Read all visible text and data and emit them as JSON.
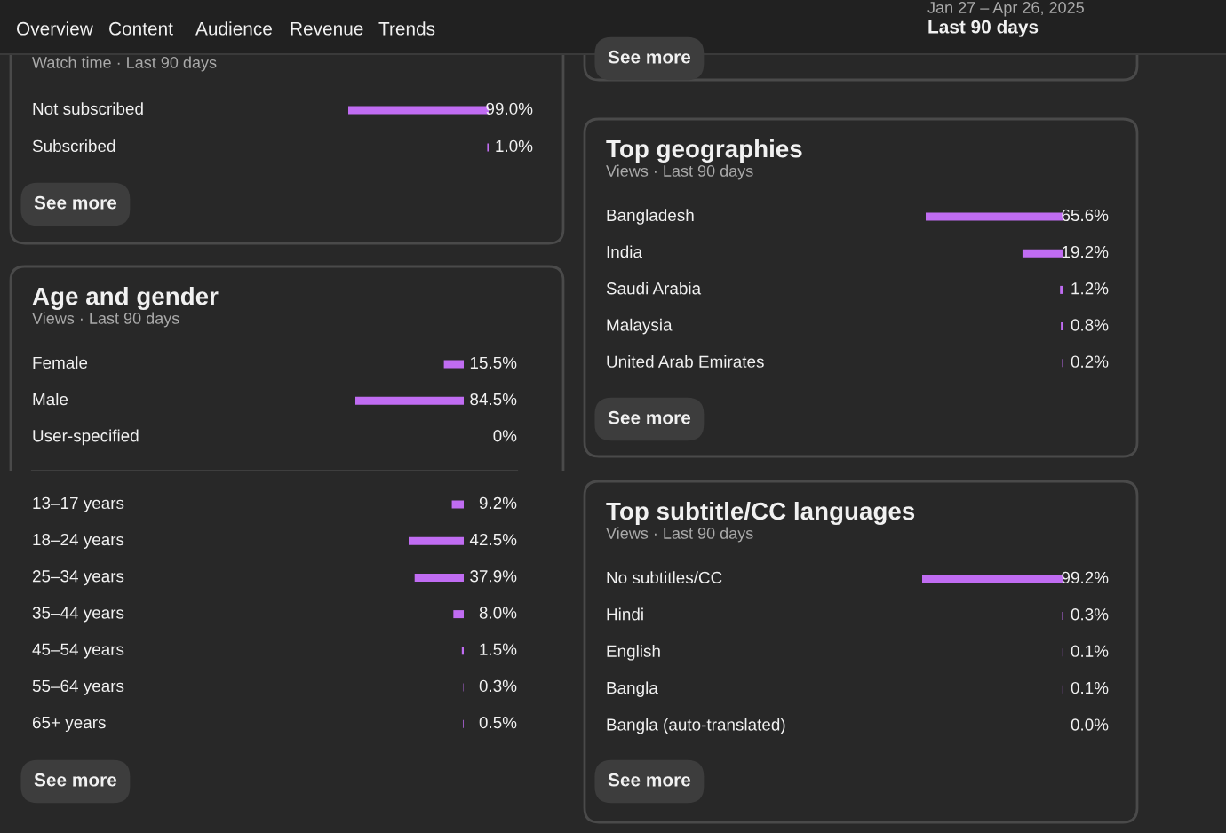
{
  "chart_data": [
    {
      "type": "other",
      "annotations": [
        "Overview",
        "Content",
        "Audience",
        "Revenue",
        "Trends",
        "Jan 27 – Apr 26, 2025",
        "Last 90 days"
      ]
    },
    {
      "type": "bar",
      "orientation": "horizontal",
      "subtitle": "Watch time · Last 90 days",
      "categories": [
        "Not subscribed",
        "Subscribed"
      ],
      "values": [
        99.0,
        1.0
      ],
      "value_labels": [
        "99.0%",
        "1.0%"
      ],
      "color": "#c06cf2",
      "annotations": [
        "See more"
      ]
    },
    {
      "type": "other",
      "annotations": [
        "See more"
      ]
    },
    {
      "type": "bar",
      "orientation": "horizontal",
      "title": "Age and gender",
      "subtitle": "Views · Last 90 days",
      "categories": [
        "Female",
        "Male",
        "User-specified"
      ],
      "values": [
        15.5,
        84.5,
        0
      ],
      "value_labels": [
        "15.5%",
        "84.5%",
        "0%"
      ],
      "color": "#c06cf2"
    },
    {
      "type": "bar",
      "orientation": "horizontal",
      "categories": [
        "13–17 years",
        "18–24 years",
        "25–34 years",
        "35–44 years",
        "45–54 years",
        "55–64 years",
        "65+ years"
      ],
      "values": [
        9.2,
        42.5,
        37.9,
        8.0,
        1.5,
        0.3,
        0.5
      ],
      "value_labels": [
        "9.2%",
        "42.5%",
        "37.9%",
        "8.0%",
        "1.5%",
        "0.3%",
        "0.5%"
      ],
      "color": "#c06cf2",
      "annotations": [
        "See more"
      ]
    },
    {
      "type": "bar",
      "orientation": "horizontal",
      "title": "Top geographies",
      "subtitle": "Views · Last 90 days",
      "categories": [
        "Bangladesh",
        "India",
        "Saudi Arabia",
        "Malaysia",
        "United Arab Emirates"
      ],
      "values": [
        65.6,
        19.2,
        1.2,
        0.8,
        0.2
      ],
      "value_labels": [
        "65.6%",
        "19.2%",
        "1.2%",
        "0.8%",
        "0.2%"
      ],
      "color": "#c06cf2",
      "annotations": [
        "See more"
      ]
    },
    {
      "type": "bar",
      "orientation": "horizontal",
      "title": "Top subtitle/CC languages",
      "subtitle": "Views · Last 90 days",
      "categories": [
        "No subtitles/CC",
        "Hindi",
        "English",
        "Bangla",
        "Bangla (auto-translated)"
      ],
      "values": [
        99.2,
        0.3,
        0.1,
        0.1,
        0.0
      ],
      "value_labels": [
        "99.2%",
        "0.3%",
        "0.1%",
        "0.1%",
        "0.0%"
      ],
      "color": "#c06cf2",
      "annotations": [
        "See more"
      ]
    }
  ]
}
